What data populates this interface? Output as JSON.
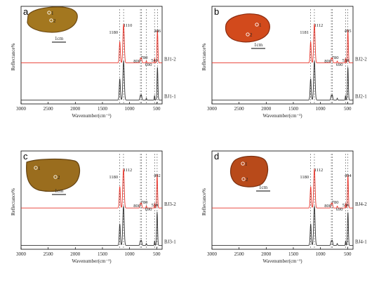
{
  "figure": {
    "x_axis_label": "Wavenumber(cm⁻¹)",
    "y_axis_label": "Reflectance%",
    "x_ticks": [
      3000,
      2500,
      2000,
      1500,
      1000,
      500
    ],
    "scale_bar_label": "1cm"
  },
  "colors": {
    "upper_spectrum": "#e8342a",
    "lower_spectrum": "#333333",
    "dashed_guides": "#555555",
    "axis": "#000000"
  },
  "chart_data": [
    {
      "type": "line",
      "panel_label": "a",
      "xlabel": "Wavenumber(cm⁻¹)",
      "ylabel": "Reflectance%",
      "xlim": [
        3000,
        400
      ],
      "x_reversed": true,
      "grid": false,
      "spot_labels": [
        "1",
        "2"
      ],
      "series": [
        {
          "name": "BJ1-2",
          "color": "#e8342a",
          "peaks": [
            1180,
            1110,
            800,
            780,
            690,
            540,
            486
          ]
        },
        {
          "name": "BJ1-1",
          "color": "#333333",
          "peaks": [
            1180,
            1110,
            800,
            780,
            690,
            540,
            486
          ]
        }
      ],
      "peak_labels": [
        {
          "value": 1180,
          "text": "1180"
        },
        {
          "value": 1110,
          "text": "1110"
        },
        {
          "value": 800,
          "text": "800"
        },
        {
          "value": 780,
          "text": "780"
        },
        {
          "value": 690,
          "text": "690"
        },
        {
          "value": 540,
          "text": "540"
        },
        {
          "value": 486,
          "text": "486"
        }
      ],
      "dashed_guides": [
        1180,
        1110,
        800,
        780,
        690,
        540,
        486
      ]
    },
    {
      "type": "line",
      "panel_label": "b",
      "xlabel": "Wavenumber(cm⁻¹)",
      "ylabel": "Reflectance%",
      "xlim": [
        3000,
        400
      ],
      "x_reversed": true,
      "grid": false,
      "spot_labels": [
        "1",
        "2"
      ],
      "series": [
        {
          "name": "BJ2-2",
          "color": "#e8342a",
          "peaks": [
            1181,
            1112,
            800,
            780,
            690,
            538,
            495
          ]
        },
        {
          "name": "BJ2-1",
          "color": "#333333",
          "peaks": [
            1181,
            1112,
            800,
            780,
            690,
            538,
            495
          ]
        }
      ],
      "peak_labels": [
        {
          "value": 1181,
          "text": "1181"
        },
        {
          "value": 1112,
          "text": "1112"
        },
        {
          "value": 800,
          "text": "800"
        },
        {
          "value": 780,
          "text": "780"
        },
        {
          "value": 690,
          "text": "690"
        },
        {
          "value": 538,
          "text": "538"
        },
        {
          "value": 495,
          "text": "495"
        }
      ],
      "dashed_guides": [
        1181,
        1112,
        800,
        780,
        538,
        495
      ]
    },
    {
      "type": "line",
      "panel_label": "c",
      "xlabel": "Wavenumber(cm⁻¹)",
      "ylabel": "Reflectance%",
      "xlim": [
        3000,
        400
      ],
      "x_reversed": true,
      "grid": false,
      "spot_labels": [
        "1",
        "2"
      ],
      "series": [
        {
          "name": "BJ3-2",
          "color": "#e8342a",
          "peaks": [
            1180,
            1112,
            800,
            780,
            690,
            538,
            492
          ]
        },
        {
          "name": "BJ3-1",
          "color": "#333333",
          "peaks": [
            1180,
            1112,
            800,
            780,
            690,
            538,
            492
          ]
        }
      ],
      "peak_labels": [
        {
          "value": 1180,
          "text": "1180"
        },
        {
          "value": 1112,
          "text": "1112"
        },
        {
          "value": 800,
          "text": "800"
        },
        {
          "value": 780,
          "text": "780"
        },
        {
          "value": 690,
          "text": "690"
        },
        {
          "value": 538,
          "text": "538"
        },
        {
          "value": 492,
          "text": "492"
        }
      ],
      "dashed_guides": [
        1180,
        1112,
        800,
        780,
        690,
        538,
        492
      ]
    },
    {
      "type": "line",
      "panel_label": "d",
      "xlabel": "Wavenumber(cm⁻¹)",
      "ylabel": "Reflectance%",
      "xlim": [
        3000,
        400
      ],
      "x_reversed": true,
      "grid": false,
      "spot_labels": [
        "1",
        "2"
      ],
      "series": [
        {
          "name": "BJ4-2",
          "color": "#e8342a",
          "peaks": [
            1180,
            1112,
            800,
            780,
            690,
            536,
            494
          ]
        },
        {
          "name": "BJ4-1",
          "color": "#333333",
          "peaks": [
            1180,
            1112,
            800,
            780,
            690,
            536,
            494
          ]
        }
      ],
      "peak_labels": [
        {
          "value": 1180,
          "text": "1180"
        },
        {
          "value": 1112,
          "text": "1112"
        },
        {
          "value": 800,
          "text": "800"
        },
        {
          "value": 780,
          "text": "780"
        },
        {
          "value": 690,
          "text": "690"
        },
        {
          "value": 536,
          "text": "536"
        },
        {
          "value": 494,
          "text": "494"
        }
      ],
      "dashed_guides": [
        1180,
        1112,
        800,
        780,
        536,
        494
      ]
    }
  ]
}
